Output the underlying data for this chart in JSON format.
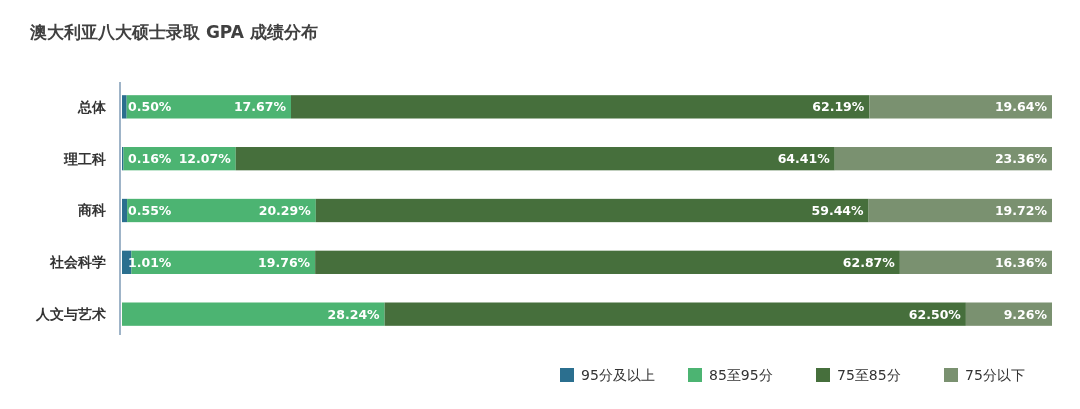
{
  "chart_data": {
    "type": "bar",
    "orientation": "horizontal",
    "stacked": true,
    "title": "澳大利亚八大硕士录取 GPA 成绩分布",
    "categories": [
      "总体",
      "理工科",
      "商科",
      "社会科学",
      "人文与艺术"
    ],
    "series": [
      {
        "name": "95分及以上",
        "color": "#2b6f8f",
        "values": [
          0.5,
          0.16,
          0.55,
          1.01,
          0
        ],
        "value_labels": [
          "0.50%",
          "0.16%",
          "0.55%",
          "1.01%",
          null
        ]
      },
      {
        "name": "85至95分",
        "color": "#4cb472",
        "values": [
          17.67,
          12.07,
          20.29,
          19.76,
          28.24
        ],
        "value_labels": [
          "17.67%",
          "12.07%",
          "20.29%",
          "19.76%",
          "28.24%"
        ]
      },
      {
        "name": "75至85分",
        "color": "#466f3c",
        "values": [
          62.19,
          64.41,
          59.44,
          62.87,
          62.5
        ],
        "value_labels": [
          "62.19%",
          "64.41%",
          "59.44%",
          "62.87%",
          "62.50%"
        ]
      },
      {
        "name": "75分以下",
        "color": "#7a9170",
        "values": [
          19.64,
          23.36,
          19.72,
          16.36,
          9.26
        ],
        "value_labels": [
          "19.64%",
          "23.36%",
          "19.72%",
          "16.36%",
          "9.26%"
        ]
      }
    ],
    "legend": "bottom right"
  }
}
